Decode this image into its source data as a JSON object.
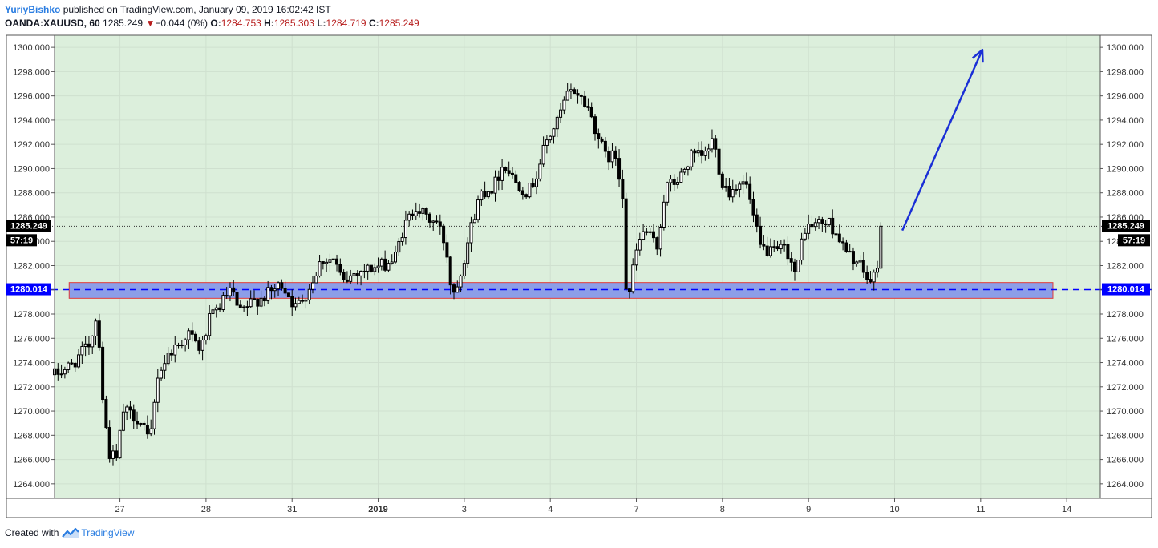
{
  "header": {
    "author": "YuriyBishko",
    "published_text": "published on TradingView.com, January 09, 2019 16:02:42 IST",
    "symbol": "OANDA:XAUUSD, 60",
    "last": "1285.249",
    "change_arrow": "▼",
    "change": "−0.044 (0%)",
    "o_label": "O:",
    "o_value": "1284.753",
    "h_label": "H:",
    "h_value": "1285.303",
    "l_label": "L:",
    "l_value": "1284.719",
    "c_label": "C:",
    "c_value": "1285.249"
  },
  "footer": {
    "created_with": "Created with",
    "brand": "TradingView"
  },
  "colors": {
    "plot_bg": "#dcefdc",
    "candle": "#000000",
    "zone_fill": "#8c9ee8",
    "zone_border": "#e03a3a",
    "support_line": "#0000ff",
    "arrow": "#1a2fd6",
    "price_label_bg": "#000000",
    "support_label_bg": "#0000ff",
    "brand_blue": "#2a7de1"
  },
  "chart_data": {
    "type": "candlestick",
    "symbol": "OANDA:XAUUSD",
    "timeframe": "60",
    "ylim": [
      1262.8,
      1301.0
    ],
    "y_ticks": [
      1264,
      1266,
      1268,
      1270,
      1272,
      1274,
      1276,
      1278,
      1280,
      1282,
      1284,
      1286,
      1288,
      1290,
      1292,
      1294,
      1296,
      1298,
      1300
    ],
    "y_tick_labels": [
      "1264.000",
      "1266.000",
      "1268.000",
      "1270.000",
      "1272.000",
      "1274.000",
      "1276.000",
      "1278.000",
      "1280.000",
      "1282.000",
      "1284.000",
      "1286.000",
      "1288.000",
      "1290.000",
      "1292.000",
      "1294.000",
      "1296.000",
      "1298.000",
      "1300.000"
    ],
    "x_range": [
      0,
      12.15
    ],
    "x_ticks": [
      {
        "pos": 0.76,
        "label": "27",
        "bold": false
      },
      {
        "pos": 1.76,
        "label": "28",
        "bold": false
      },
      {
        "pos": 2.76,
        "label": "31",
        "bold": false
      },
      {
        "pos": 3.76,
        "label": "2019",
        "bold": true
      },
      {
        "pos": 4.76,
        "label": "3",
        "bold": false
      },
      {
        "pos": 5.76,
        "label": "4",
        "bold": false
      },
      {
        "pos": 6.76,
        "label": "7",
        "bold": false
      },
      {
        "pos": 7.76,
        "label": "8",
        "bold": false
      },
      {
        "pos": 8.76,
        "label": "9",
        "bold": false
      },
      {
        "pos": 9.76,
        "label": "10",
        "bold": false
      },
      {
        "pos": 10.76,
        "label": "11",
        "bold": false
      },
      {
        "pos": 11.76,
        "label": "14",
        "bold": false
      }
    ],
    "anchors": [
      [
        0.0,
        1273.0
      ],
      [
        0.2,
        1273.8
      ],
      [
        0.4,
        1275.5
      ],
      [
        0.5,
        1278.0
      ],
      [
        0.57,
        1270.0
      ],
      [
        0.64,
        1266.5
      ],
      [
        0.72,
        1266.0
      ],
      [
        0.8,
        1270.0
      ],
      [
        0.95,
        1269.5
      ],
      [
        1.05,
        1268.5
      ],
      [
        1.1,
        1267.0
      ],
      [
        1.2,
        1273.0
      ],
      [
        1.35,
        1275.0
      ],
      [
        1.45,
        1275.5
      ],
      [
        1.55,
        1276.5
      ],
      [
        1.7,
        1275.0
      ],
      [
        1.8,
        1277.5
      ],
      [
        1.95,
        1279.0
      ],
      [
        2.05,
        1280.0
      ],
      [
        2.15,
        1278.0
      ],
      [
        2.3,
        1279.0
      ],
      [
        2.45,
        1279.5
      ],
      [
        2.55,
        1280.0
      ],
      [
        2.65,
        1280.5
      ],
      [
        2.8,
        1278.5
      ],
      [
        2.95,
        1280.0
      ],
      [
        3.1,
        1282.5
      ],
      [
        3.25,
        1282.5
      ],
      [
        3.35,
        1280.5
      ],
      [
        3.5,
        1281.5
      ],
      [
        3.7,
        1281.8
      ],
      [
        3.8,
        1282.0
      ],
      [
        3.95,
        1282.5
      ],
      [
        4.05,
        1285.0
      ],
      [
        4.2,
        1287.0
      ],
      [
        4.3,
        1286.0
      ],
      [
        4.45,
        1285.5
      ],
      [
        4.55,
        1283.5
      ],
      [
        4.62,
        1279.5
      ],
      [
        4.72,
        1281.5
      ],
      [
        4.85,
        1285.5
      ],
      [
        4.95,
        1288.0
      ],
      [
        5.1,
        1288.5
      ],
      [
        5.22,
        1290.5
      ],
      [
        5.35,
        1289.0
      ],
      [
        5.5,
        1288.0
      ],
      [
        5.6,
        1289.5
      ],
      [
        5.7,
        1292.0
      ],
      [
        5.85,
        1294.0
      ],
      [
        5.95,
        1296.0
      ],
      [
        6.05,
        1296.5
      ],
      [
        6.2,
        1295.0
      ],
      [
        6.3,
        1293.0
      ],
      [
        6.4,
        1291.0
      ],
      [
        6.52,
        1291.0
      ],
      [
        6.6,
        1288.0
      ],
      [
        6.65,
        1278.5
      ],
      [
        6.75,
        1283.0
      ],
      [
        6.85,
        1285.0
      ],
      [
        7.0,
        1283.5
      ],
      [
        7.1,
        1288.5
      ],
      [
        7.25,
        1289.0
      ],
      [
        7.4,
        1291.0
      ],
      [
        7.55,
        1291.0
      ],
      [
        7.65,
        1292.5
      ],
      [
        7.75,
        1289.0
      ],
      [
        7.85,
        1288.0
      ],
      [
        7.95,
        1289.0
      ],
      [
        8.05,
        1288.5
      ],
      [
        8.1,
        1286.5
      ],
      [
        8.2,
        1283.5
      ],
      [
        8.35,
        1283.0
      ],
      [
        8.5,
        1283.5
      ],
      [
        8.62,
        1281.0
      ],
      [
        8.7,
        1285.0
      ],
      [
        8.85,
        1285.5
      ],
      [
        9.0,
        1285.5
      ],
      [
        9.1,
        1284.5
      ],
      [
        9.2,
        1283.0
      ],
      [
        9.3,
        1282.5
      ],
      [
        9.4,
        1281.5
      ],
      [
        9.47,
        1280.5
      ],
      [
        9.55,
        1281.5
      ],
      [
        9.6,
        1285.249
      ]
    ],
    "support": {
      "price": 1280.014,
      "label": "1280.014",
      "zone_low": 1279.3,
      "zone_high": 1280.6,
      "zone_x": [
        0.17,
        11.6
      ]
    },
    "last_price": {
      "price": 1285.249,
      "label": "1285.249",
      "countdown": "57:19"
    },
    "arrow": {
      "from": [
        9.85,
        1284.9
      ],
      "to": [
        10.78,
        1299.8
      ]
    }
  }
}
